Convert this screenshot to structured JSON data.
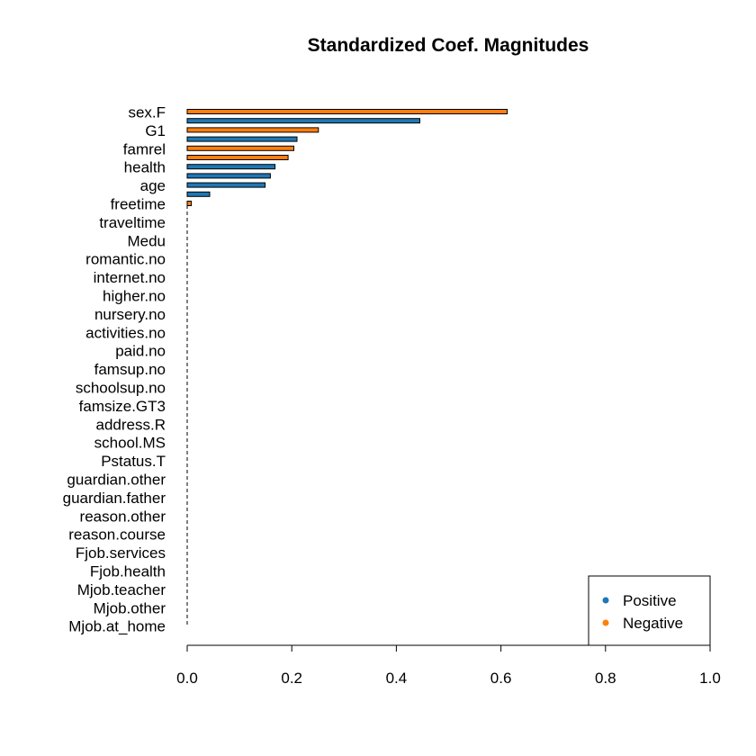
{
  "chart_data": {
    "type": "bar",
    "orientation": "horizontal",
    "title": "Standardized Coef. Magnitudes",
    "xlabel": "",
    "ylabel": "",
    "xlim": [
      0,
      1
    ],
    "x_ticks": [
      "0.0",
      "0.2",
      "0.4",
      "0.6",
      "0.8",
      "1.0"
    ],
    "grid": false,
    "legend": {
      "position": "bottom-right",
      "entries": [
        {
          "label": "Positive",
          "color": "#1F77B4"
        },
        {
          "label": "Negative",
          "color": "#FF7F0E"
        }
      ]
    },
    "bars": [
      {
        "value": 0.612,
        "sign": "Negative"
      },
      {
        "value": 0.445,
        "sign": "Positive"
      },
      {
        "value": 0.251,
        "sign": "Negative"
      },
      {
        "value": 0.21,
        "sign": "Positive"
      },
      {
        "value": 0.204,
        "sign": "Negative"
      },
      {
        "value": 0.193,
        "sign": "Negative"
      },
      {
        "value": 0.168,
        "sign": "Positive"
      },
      {
        "value": 0.159,
        "sign": "Positive"
      },
      {
        "value": 0.149,
        "sign": "Positive"
      },
      {
        "value": 0.043,
        "sign": "Positive"
      },
      {
        "value": 0.008,
        "sign": "Negative"
      }
    ],
    "y_labels": [
      "sex.F",
      "G1",
      "famrel",
      "health",
      "age",
      "freetime",
      "traveltime",
      "Medu",
      "romantic.no",
      "internet.no",
      "higher.no",
      "nursery.no",
      "activities.no",
      "paid.no",
      "famsup.no",
      "schoolsup.no",
      "famsize.GT3",
      "address.R",
      "school.MS",
      "Pstatus.T",
      "guardian.other",
      "guardian.father",
      "reason.other",
      "reason.course",
      "Fjob.services",
      "Fjob.health",
      "Mjob.teacher",
      "Mjob.other",
      "Mjob.at_home"
    ],
    "colors": {
      "positive": "#1F77B4",
      "negative": "#FF7F0E",
      "bar_border": "#000000"
    }
  }
}
